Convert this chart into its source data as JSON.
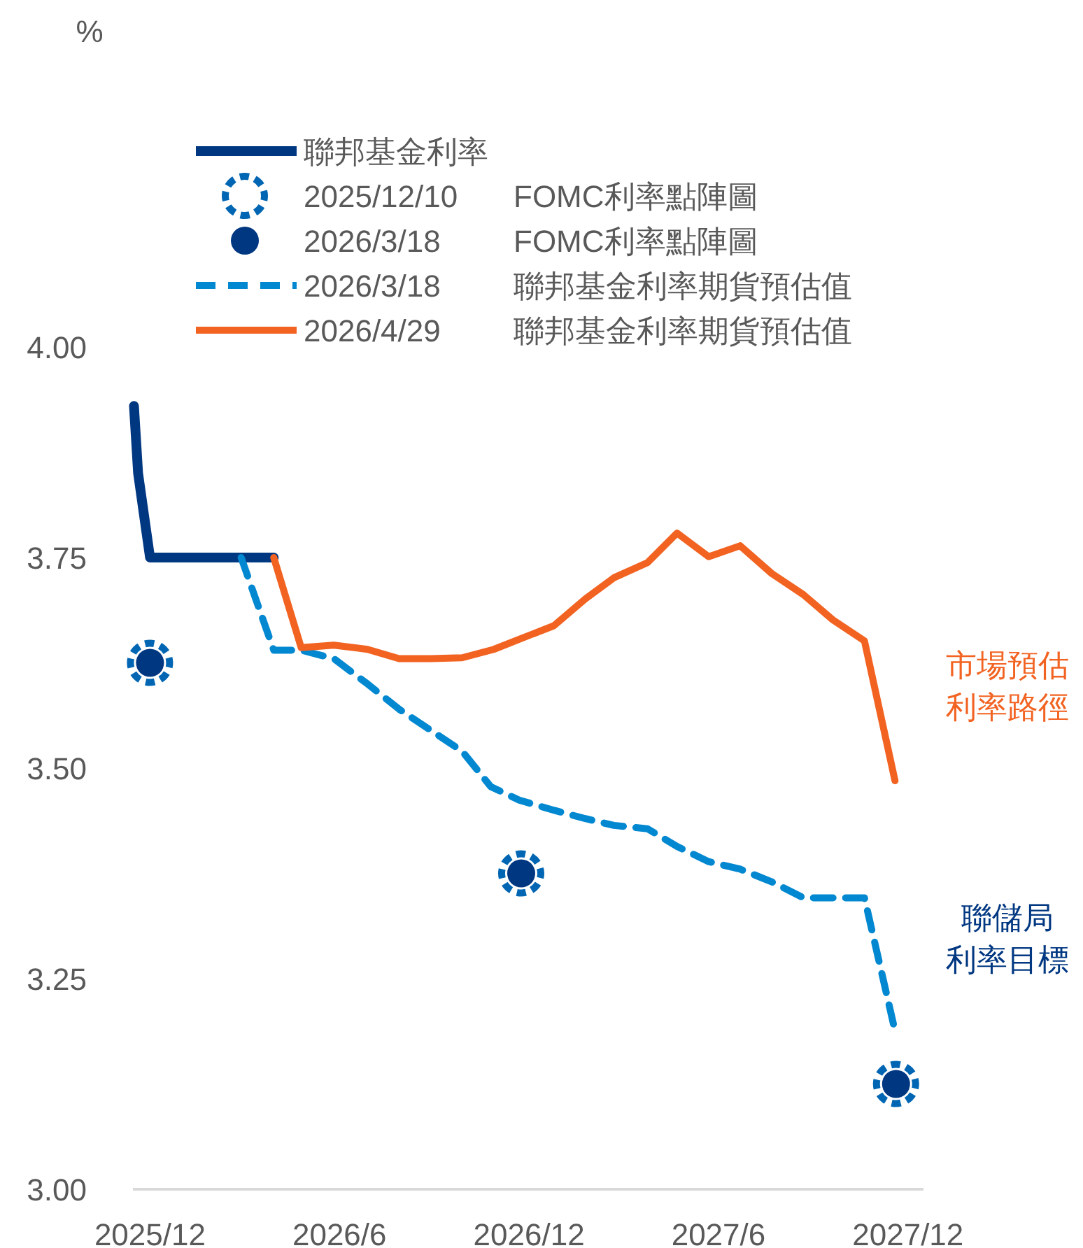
{
  "chart_data": {
    "type": "line",
    "xlim": [
      "2025-11-15",
      "2027-12-16"
    ],
    "ylim": [
      3,
      4
    ],
    "xticks": [
      {
        "value": "2025-12-01",
        "label": "2025/12"
      },
      {
        "value": "2026-06-01",
        "label": "2026/6"
      },
      {
        "value": "2026-12-01",
        "label": "2026/12"
      },
      {
        "value": "2027-06-01",
        "label": "2027/6"
      },
      {
        "value": "2027-12-01",
        "label": "2027/12"
      }
    ],
    "yticks": [
      {
        "value": 3,
        "label": "3.00"
      },
      {
        "value": 3.25,
        "label": "3.25"
      },
      {
        "value": 3.5,
        "label": "3.50"
      },
      {
        "value": 3.75,
        "label": "3.75"
      },
      {
        "value": 4,
        "label": "4.00"
      }
    ],
    "legend": "top",
    "grid": false,
    "series": [
      {
        "name": "聯邦基金利率",
        "color": "#003781",
        "x": [
          "2025-11-16",
          "2025-11-20",
          "2025-12-01",
          "2026-03-29"
        ],
        "values": [
          3.93,
          3.85,
          3.75,
          3.75
        ]
      },
      {
        "name": "2025/12/10  FOMC利率點陣圖",
        "type": "scatter",
        "line_style": "dashed",
        "color": "#0066b3",
        "x": [
          "2025-12-01",
          "2026-11-24",
          "2027-11-20"
        ],
        "values": [
          3.625,
          3.375,
          3.125
        ]
      },
      {
        "name": "2026/3/18  FOMC利率點陣圖",
        "type": "scatter",
        "line_style": "solid",
        "color": "#003781",
        "x": [
          "2025-12-01",
          "2026-11-24",
          "2027-11-20"
        ],
        "values": [
          3.625,
          3.375,
          3.125
        ]
      },
      {
        "name": "2026/3/18  聯邦基金利率期貨預估值",
        "line_style": "dashed",
        "color": "#0288d1",
        "x": [
          "2026-02-28",
          "2026-03-29",
          "2026-04-25",
          "2026-05-26",
          "2026-06-28",
          "2026-07-28",
          "2026-08-28",
          "2026-09-28",
          "2026-10-25",
          "2026-11-22",
          "2026-12-25",
          "2027-01-25",
          "2027-02-22",
          "2027-03-24",
          "2027-04-22",
          "2027-05-22",
          "2027-06-22",
          "2027-07-22",
          "2027-08-22",
          "2027-09-20",
          "2027-10-20",
          "2027-11-19"
        ],
        "values": [
          3.75,
          3.64,
          3.64,
          3.63,
          3.6,
          3.57,
          3.545,
          3.52,
          3.478,
          3.462,
          3.45,
          3.44,
          3.432,
          3.428,
          3.407,
          3.389,
          3.38,
          3.365,
          3.346,
          3.346,
          3.346,
          3.188
        ]
      },
      {
        "name": "2026/4/29  聯邦基金利率期貨預估值",
        "line_style": "solid",
        "color": "#f26322",
        "x": [
          "2026-03-29",
          "2026-04-25",
          "2026-05-26",
          "2026-06-28",
          "2026-07-28",
          "2026-08-28",
          "2026-09-28",
          "2026-10-28",
          "2026-11-22",
          "2026-12-25",
          "2027-01-25",
          "2027-02-22",
          "2027-03-24",
          "2027-04-22",
          "2027-05-22",
          "2027-06-22",
          "2027-07-22",
          "2027-08-22",
          "2027-09-20",
          "2027-10-20",
          "2027-11-19"
        ],
        "values": [
          3.75,
          3.643,
          3.646,
          3.641,
          3.63,
          3.63,
          3.631,
          3.641,
          3.653,
          3.669,
          3.701,
          3.726,
          3.744,
          3.779,
          3.751,
          3.764,
          3.731,
          3.706,
          3.676,
          3.651,
          3.485
        ]
      }
    ],
    "annotations": [
      "%",
      "市場預估利率路徑",
      "聯儲局利率目標"
    ]
  }
}
